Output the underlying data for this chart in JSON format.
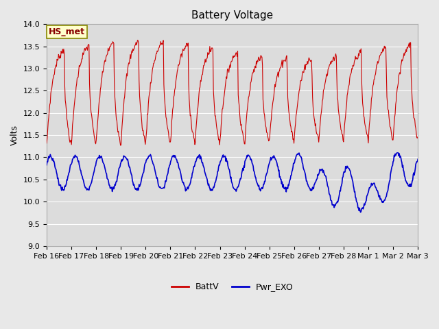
{
  "title": "Battery Voltage",
  "ylabel": "Volts",
  "ylim": [
    9.0,
    14.0
  ],
  "yticks": [
    9.0,
    9.5,
    10.0,
    10.5,
    11.0,
    11.5,
    12.0,
    12.5,
    13.0,
    13.5,
    14.0
  ],
  "xlabel_labels": [
    "Feb 16",
    "Feb 17",
    "Feb 18",
    "Feb 19",
    "Feb 20",
    "Feb 21",
    "Feb 22",
    "Feb 23",
    "Feb 24",
    "Feb 25",
    "Feb 26",
    "Feb 27",
    "Feb 28",
    "Mar 1",
    "Mar 2",
    "Mar 3"
  ],
  "batt_color": "#cc0000",
  "exo_color": "#0000cc",
  "fig_bg": "#e8e8e8",
  "plot_bg": "#dcdcdc",
  "annotation_text": "HS_met",
  "annotation_bg": "#ffffcc",
  "annotation_border": "#888800",
  "legend_batt": "BattV",
  "legend_exo": "Pwr_EXO",
  "title_fontsize": 11,
  "axis_fontsize": 9,
  "tick_fontsize": 8
}
